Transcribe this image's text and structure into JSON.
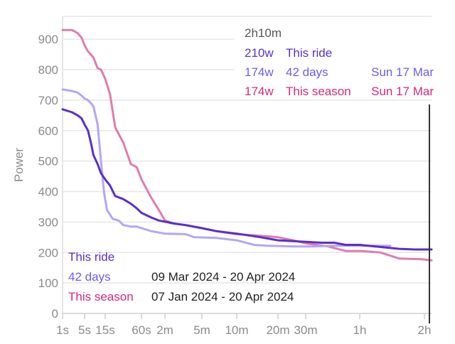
{
  "chart_data": {
    "type": "line",
    "title": "",
    "xlabel": "",
    "ylabel": "Power",
    "xscale": "log-like duration",
    "xlim_seconds": [
      1,
      7500
    ],
    "ylim": [
      0,
      975
    ],
    "grid": true,
    "y_ticks": [
      0,
      100,
      200,
      300,
      400,
      500,
      600,
      700,
      800,
      900
    ],
    "x_ticks": [
      {
        "label": "1s",
        "seconds": 1
      },
      {
        "label": "5s",
        "seconds": 5
      },
      {
        "label": "15s",
        "seconds": 15
      },
      {
        "label": "60s",
        "seconds": 60
      },
      {
        "label": "2m",
        "seconds": 120
      },
      {
        "label": "5m",
        "seconds": 300
      },
      {
        "label": "10m",
        "seconds": 600
      },
      {
        "label": "20m",
        "seconds": 1200
      },
      {
        "label": "30m",
        "seconds": 1800
      },
      {
        "label": "1h",
        "seconds": 3600
      },
      {
        "label": "2h",
        "seconds": 7200
      }
    ],
    "series": [
      {
        "name": "This season",
        "color": "#e07bb0",
        "points": [
          [
            1,
            930
          ],
          [
            2,
            930
          ],
          [
            3,
            920
          ],
          [
            4,
            905
          ],
          [
            5,
            880
          ],
          [
            6,
            860
          ],
          [
            8,
            840
          ],
          [
            10,
            805
          ],
          [
            12,
            800
          ],
          [
            15,
            770
          ],
          [
            18,
            720
          ],
          [
            22,
            610
          ],
          [
            30,
            560
          ],
          [
            40,
            490
          ],
          [
            50,
            480
          ],
          [
            60,
            440
          ],
          [
            80,
            380
          ],
          [
            100,
            340
          ],
          [
            120,
            305
          ],
          [
            150,
            295
          ],
          [
            200,
            290
          ],
          [
            300,
            280
          ],
          [
            400,
            270
          ],
          [
            600,
            260
          ],
          [
            900,
            255
          ],
          [
            1200,
            250
          ],
          [
            1500,
            240
          ],
          [
            1800,
            230
          ],
          [
            2400,
            220
          ],
          [
            3000,
            205
          ],
          [
            3600,
            205
          ],
          [
            4500,
            200
          ],
          [
            5500,
            180
          ],
          [
            7000,
            178
          ],
          [
            7500,
            174
          ]
        ]
      },
      {
        "name": "42 days",
        "color": "#b3a6f5",
        "points": [
          [
            1,
            735
          ],
          [
            2,
            730
          ],
          [
            3,
            725
          ],
          [
            4,
            715
          ],
          [
            5,
            705
          ],
          [
            6,
            700
          ],
          [
            7,
            690
          ],
          [
            8,
            680
          ],
          [
            10,
            620
          ],
          [
            12,
            500
          ],
          [
            14,
            400
          ],
          [
            16,
            340
          ],
          [
            20,
            310
          ],
          [
            25,
            305
          ],
          [
            30,
            290
          ],
          [
            40,
            285
          ],
          [
            50,
            285
          ],
          [
            60,
            280
          ],
          [
            80,
            270
          ],
          [
            120,
            262
          ],
          [
            200,
            260
          ],
          [
            250,
            250
          ],
          [
            400,
            248
          ],
          [
            600,
            240
          ],
          [
            800,
            225
          ],
          [
            1000,
            222
          ],
          [
            1500,
            220
          ],
          [
            2000,
            220
          ],
          [
            2500,
            222
          ],
          [
            3000,
            222
          ],
          [
            5000,
            222
          ]
        ]
      },
      {
        "name": "This ride",
        "color": "#5a2fcc",
        "points": [
          [
            1,
            670
          ],
          [
            2,
            660
          ],
          [
            3,
            650
          ],
          [
            4,
            640
          ],
          [
            5,
            620
          ],
          [
            6,
            600
          ],
          [
            7,
            560
          ],
          [
            8,
            520
          ],
          [
            10,
            490
          ],
          [
            12,
            460
          ],
          [
            15,
            440
          ],
          [
            18,
            420
          ],
          [
            22,
            385
          ],
          [
            30,
            375
          ],
          [
            40,
            360
          ],
          [
            50,
            345
          ],
          [
            60,
            330
          ],
          [
            80,
            315
          ],
          [
            100,
            305
          ],
          [
            150,
            295
          ],
          [
            200,
            290
          ],
          [
            300,
            280
          ],
          [
            400,
            270
          ],
          [
            600,
            262
          ],
          [
            900,
            250
          ],
          [
            1200,
            240
          ],
          [
            1800,
            235
          ],
          [
            2200,
            232
          ],
          [
            2600,
            232
          ],
          [
            3000,
            225
          ],
          [
            3600,
            225
          ],
          [
            4500,
            218
          ],
          [
            5500,
            212
          ],
          [
            6500,
            210
          ],
          [
            7500,
            210
          ]
        ]
      }
    ],
    "cursor": {
      "duration": "2h10m",
      "rows": [
        {
          "value": "210w",
          "label": "This ride",
          "date": "",
          "color": "#5a2fcc"
        },
        {
          "value": "174w",
          "label": "42 days",
          "date": "Sun 17 Mar",
          "color": "#6a5cf0"
        },
        {
          "value": "174w",
          "label": "This season",
          "date": "Sun 17 Mar",
          "color": "#d4287e"
        }
      ]
    },
    "legend": {
      "placement": "bottom-left",
      "entries": [
        {
          "label": "This ride",
          "range": "",
          "color": "#5a2fcc"
        },
        {
          "label": "42 days",
          "range": "09 Mar 2024 - 20 Apr 2024",
          "color": "#6a5cf0"
        },
        {
          "label": "This season",
          "range": "07 Jan 2024 - 20 Apr 2024",
          "color": "#d4287e"
        }
      ]
    }
  }
}
